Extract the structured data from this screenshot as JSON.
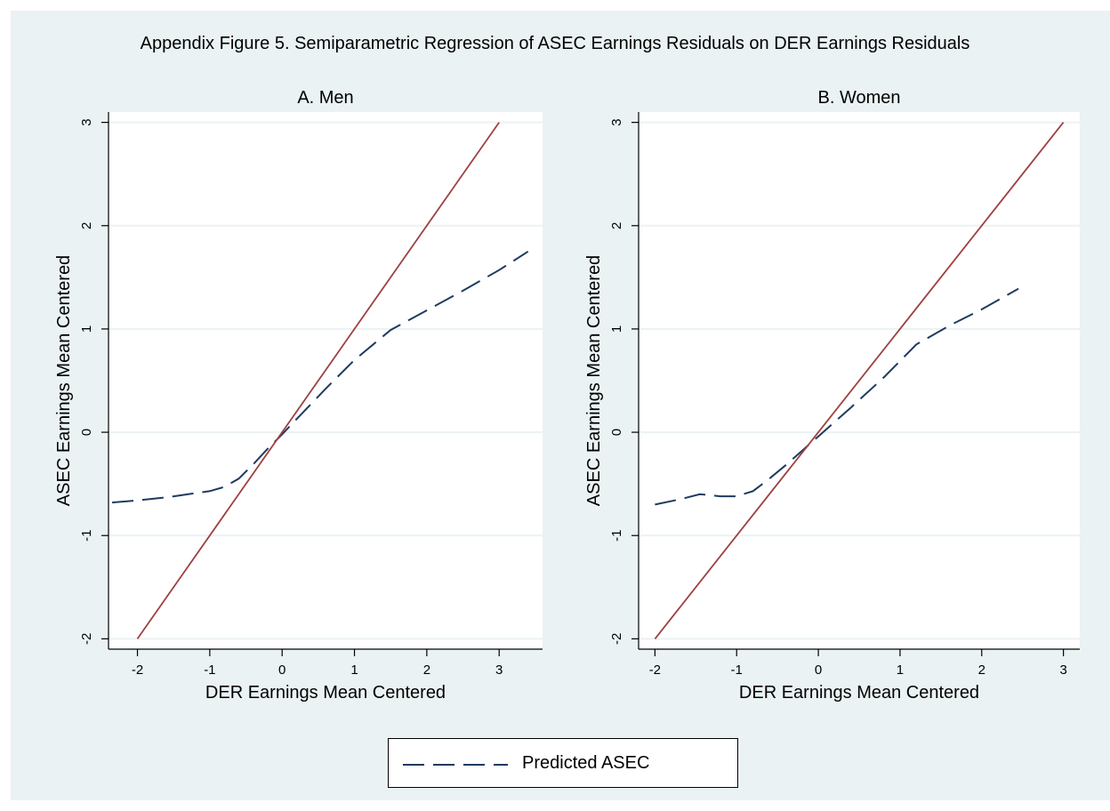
{
  "figure_title": "Appendix Figure 5. Semiparametric Regression of ASEC Earnings Residuals on DER Earnings Residuals",
  "colors": {
    "background": "#eaf2f3",
    "plot_background": "#ffffff",
    "predicted_line": "#1f3a5f",
    "reference_line": "#a04040",
    "grid": "#eaf2f3"
  },
  "legend": {
    "label": "Predicted ASEC"
  },
  "chart_data": [
    {
      "type": "line",
      "title": "A. Men",
      "xlabel": "DER Earnings Mean Centered",
      "ylabel": "ASEC Earnings Mean Centered",
      "xlim": [
        -2.4,
        3.6
      ],
      "ylim": [
        -2.1,
        3.1
      ],
      "xticks": [
        "-2",
        "-1",
        "0",
        "1",
        "2",
        "3"
      ],
      "yticks": [
        "-2",
        "-1",
        "0",
        "1",
        "2",
        "3"
      ],
      "grid": true,
      "series": [
        {
          "name": "Predicted ASEC",
          "style": "dashed",
          "x": [
            -2.35,
            -2.0,
            -1.6,
            -1.2,
            -1.0,
            -0.8,
            -0.6,
            -0.4,
            -0.2,
            0.0,
            0.3,
            0.6,
            1.0,
            1.5,
            2.0,
            2.5,
            3.0,
            3.4
          ],
          "y": [
            -0.68,
            -0.66,
            -0.63,
            -0.59,
            -0.57,
            -0.53,
            -0.45,
            -0.31,
            -0.16,
            -0.02,
            0.2,
            0.42,
            0.7,
            0.99,
            1.18,
            1.37,
            1.57,
            1.75
          ]
        },
        {
          "style": "solid",
          "x": [
            -2,
            3
          ],
          "y": [
            -2,
            3
          ]
        }
      ]
    },
    {
      "type": "line",
      "title": "B. Women",
      "xlabel": "DER Earnings Mean Centered",
      "ylabel": "ASEC Earnings Mean Centered",
      "xlim": [
        -2.2,
        3.2
      ],
      "ylim": [
        -2.1,
        3.1
      ],
      "xticks": [
        "-2",
        "-1",
        "0",
        "1",
        "2",
        "3"
      ],
      "yticks": [
        "-2",
        "-1",
        "0",
        "1",
        "2",
        "3"
      ],
      "grid": true,
      "series": [
        {
          "name": "Predicted ASEC",
          "style": "dashed",
          "x": [
            -2.0,
            -1.7,
            -1.45,
            -1.2,
            -1.0,
            -0.8,
            -0.6,
            -0.4,
            -0.2,
            0.0,
            0.4,
            0.8,
            1.2,
            1.6,
            2.0,
            2.45
          ],
          "y": [
            -0.7,
            -0.65,
            -0.6,
            -0.62,
            -0.62,
            -0.57,
            -0.45,
            -0.32,
            -0.18,
            -0.04,
            0.24,
            0.53,
            0.85,
            1.03,
            1.19,
            1.39
          ]
        },
        {
          "style": "solid",
          "x": [
            -2,
            3
          ],
          "y": [
            -2,
            3
          ]
        }
      ]
    }
  ]
}
